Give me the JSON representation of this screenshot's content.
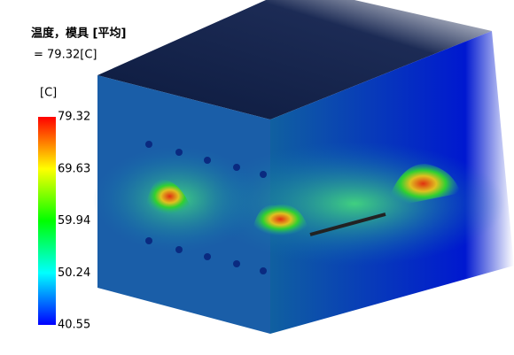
{
  "header": {
    "title": "温度，模具 [平均]",
    "value": "= 79.32[C]"
  },
  "legend": {
    "unit": "[C]",
    "labels": [
      "79.32",
      "69.63",
      "59.94",
      "50.24",
      "40.55"
    ]
  }
}
